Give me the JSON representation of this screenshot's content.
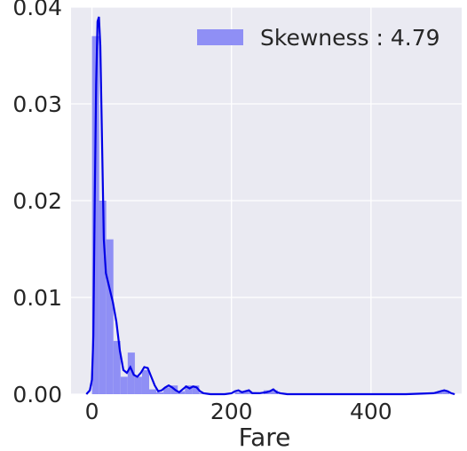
{
  "chart_data": {
    "type": "bar",
    "subtype": "histogram-with-kde",
    "xlabel": "Fare",
    "ylabel": "",
    "xlim": [
      -30,
      530
    ],
    "ylim": [
      0,
      0.04
    ],
    "x_ticks": [
      0,
      200,
      400
    ],
    "x_tick_labels": [
      "0",
      "200",
      "400"
    ],
    "y_ticks": [
      0,
      0.01,
      0.02,
      0.03,
      0.04
    ],
    "y_tick_labels": [
      "0.00",
      "0.01",
      "0.02",
      "0.03",
      "0.04"
    ],
    "grid": true,
    "legend": {
      "placement": "top-right",
      "entries": [
        "Skewness : 4.79"
      ]
    },
    "colors": {
      "background": "#eaeaf2",
      "grid": "#ffffff",
      "bar": "#8f8ff5",
      "kde": "#0000e6"
    },
    "histogram": {
      "bin_width": 10.25,
      "bin_start": 0,
      "counts_density": [
        0.037,
        0.02,
        0.016,
        0.0055,
        0.0018,
        0.0043,
        0.0018,
        0.0025,
        0.0005,
        0.0002,
        0.0007,
        0.0009,
        0.0003,
        0.0009,
        0.0009,
        0.0001,
        0,
        0,
        0,
        0,
        0.0002,
        0.0003,
        0.0002,
        0,
        0.0004,
        0.0004,
        0,
        0,
        0,
        0,
        0,
        0,
        0,
        0,
        0,
        0,
        0,
        0,
        0,
        0,
        0,
        0,
        0,
        0,
        0,
        0,
        0,
        0,
        0.0002,
        0.0003
      ]
    },
    "kde": {
      "x": [
        -8,
        -3,
        0,
        2,
        4,
        6,
        8,
        10,
        12,
        14,
        17,
        20,
        25,
        30,
        35,
        40,
        45,
        50,
        55,
        60,
        65,
        70,
        75,
        80,
        85,
        90,
        95,
        100,
        105,
        110,
        115,
        120,
        125,
        130,
        135,
        140,
        145,
        150,
        155,
        160,
        170,
        180,
        190,
        200,
        205,
        210,
        215,
        220,
        225,
        230,
        240,
        250,
        255,
        260,
        265,
        270,
        280,
        300,
        350,
        400,
        450,
        490,
        500,
        505,
        510,
        515,
        520
      ],
      "y": [
        0,
        0.0004,
        0.0015,
        0.006,
        0.02,
        0.032,
        0.0385,
        0.039,
        0.036,
        0.028,
        0.016,
        0.0125,
        0.011,
        0.0095,
        0.0075,
        0.0045,
        0.0025,
        0.0022,
        0.0028,
        0.002,
        0.0018,
        0.0022,
        0.0028,
        0.0027,
        0.0018,
        0.0009,
        0.0003,
        0.0004,
        0.0007,
        0.0009,
        0.0007,
        0.0004,
        0.0002,
        0.0005,
        0.0008,
        0.0006,
        0.0008,
        0.0007,
        0.0003,
        0.0001,
        0,
        0,
        0,
        0.0001,
        0.0003,
        0.0004,
        0.0002,
        0.0003,
        0.0004,
        0.0001,
        0.0001,
        0.0002,
        0.0003,
        0.0005,
        0.0002,
        0.0001,
        0,
        0,
        0,
        0,
        0,
        0.0001,
        0.0003,
        0.0004,
        0.0003,
        0.0001,
        0
      ]
    }
  }
}
